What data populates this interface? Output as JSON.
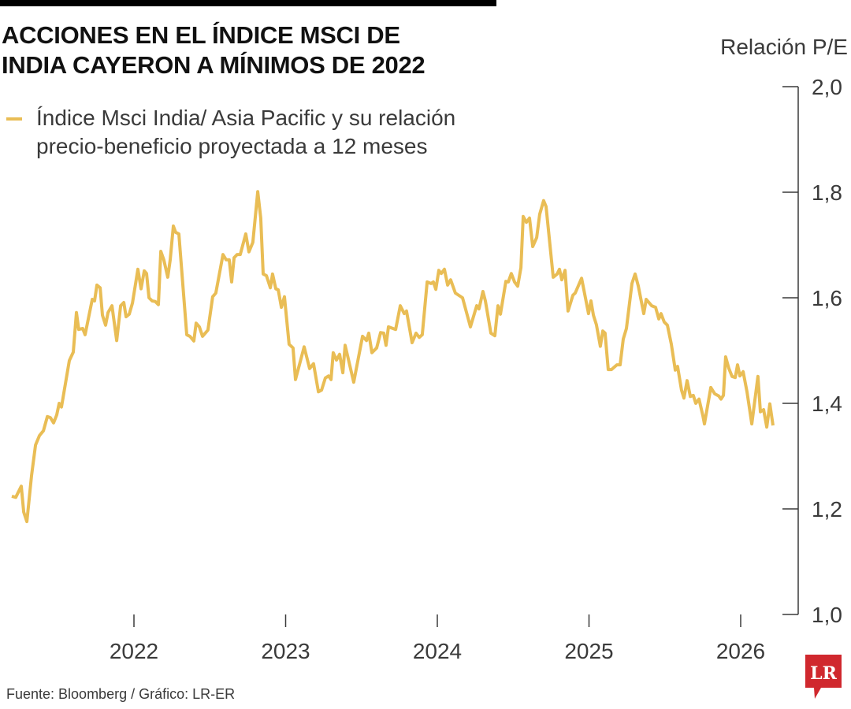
{
  "title_lines": [
    "ACCIONES EN EL ÍNDICE MSCI DE",
    "INDIA CAYERON A MÍNIMOS DE 2022"
  ],
  "legend": {
    "lines": [
      "Índice Msci India/ Asia Pacific y su relación",
      "precio-beneficio proyectada a 12 meses"
    ]
  },
  "source": "Fuente: Bloomberg / Gráfico: LR-ER",
  "logo_text": "LR",
  "colors": {
    "line": "#e9bd55",
    "axis": "#3a3a3a",
    "logo": "#d0282e"
  },
  "chart_data": {
    "type": "line",
    "title": "ACCIONES EN EL ÍNDICE MSCI DE INDIA CAYERON A MÍNIMOS DE 2022",
    "xlabel": "",
    "ylabel": "Relación P/E",
    "xlim": [
      2021.12,
      2026.49
    ],
    "ylim": [
      1.0,
      2.0
    ],
    "x_ticks": [
      2022,
      2023,
      2024,
      2025,
      2026
    ],
    "x_tick_labels": [
      "2022",
      "2023",
      "2024",
      "2025",
      "2026"
    ],
    "y_ticks": [
      1.0,
      1.2,
      1.4,
      1.6,
      1.8,
      2.0
    ],
    "y_tick_labels": [
      "1,0",
      "1,2",
      "1,4",
      "1,6",
      "1,8",
      "2,0"
    ],
    "grid": false,
    "legend_position": "top-left",
    "series": [
      {
        "name": "Índice Msci India/ Asia Pacific y su relación precio-beneficio proyectada a 12 meses",
        "x": [
          2021.195,
          2021.221,
          2021.257,
          2021.273,
          2021.294,
          2021.325,
          2021.351,
          2021.377,
          2021.403,
          2021.429,
          2021.449,
          2021.47,
          2021.491,
          2021.507,
          2021.522,
          2021.574,
          2021.6,
          2021.621,
          2021.636,
          2021.662,
          2021.678,
          2021.725,
          2021.74,
          2021.756,
          2021.777,
          2021.792,
          2021.813,
          2021.829,
          2021.855,
          2021.886,
          2021.912,
          2021.933,
          2021.948,
          2021.969,
          2021.99,
          2022.026,
          2022.047,
          2022.068,
          2022.083,
          2022.099,
          2022.12,
          2022.14,
          2022.161,
          2022.177,
          2022.197,
          2022.223,
          2022.239,
          2022.26,
          2022.275,
          2022.296,
          2022.348,
          2022.369,
          2022.395,
          2022.41,
          2022.431,
          2022.452,
          2022.488,
          2022.519,
          2022.54,
          2022.587,
          2022.608,
          2022.628,
          2022.644,
          2022.66,
          2022.68,
          2022.701,
          2022.737,
          2022.758,
          2022.784,
          2022.816,
          2022.836,
          2022.852,
          2022.873,
          2022.899,
          2022.914,
          2022.935,
          2022.951,
          2022.972,
          2022.992,
          2023.023,
          2023.049,
          2023.065,
          2023.122,
          2023.158,
          2023.184,
          2023.216,
          2023.237,
          2023.262,
          2023.283,
          2023.299,
          2023.314,
          2023.335,
          2023.356,
          2023.377,
          2023.392,
          2023.449,
          2023.507,
          2023.533,
          2023.548,
          2023.569,
          2023.6,
          2023.626,
          2023.647,
          2023.662,
          2023.678,
          2023.725,
          2023.756,
          2023.782,
          2023.797,
          2023.834,
          2023.86,
          2023.881,
          2023.901,
          2023.933,
          2023.958,
          2023.974,
          2023.99,
          2024.01,
          2024.026,
          2024.047,
          2024.068,
          2024.088,
          2024.119,
          2024.166,
          2024.218,
          2024.26,
          2024.275,
          2024.301,
          2024.317,
          2024.353,
          2024.379,
          2024.4,
          2024.416,
          2024.452,
          2024.468,
          2024.488,
          2024.509,
          2024.53,
          2024.551,
          2024.566,
          2024.587,
          2024.608,
          2024.629,
          2024.655,
          2024.675,
          2024.701,
          2024.717,
          2024.764,
          2024.79,
          2024.805,
          2024.821,
          2024.842,
          2024.862,
          2024.894,
          2024.909,
          2024.951,
          2024.997,
          2025.013,
          2025.029,
          2025.049,
          2025.075,
          2025.091,
          2025.106,
          2025.127,
          2025.148,
          2025.184,
          2025.205,
          2025.226,
          2025.247,
          2025.283,
          2025.304,
          2025.325,
          2025.361,
          2025.377,
          2025.413,
          2025.439,
          2025.46,
          2025.475,
          2025.496,
          2025.517,
          2025.543,
          2025.569,
          2025.584,
          2025.61,
          2025.626,
          2025.647,
          2025.668,
          2025.688,
          2025.704,
          2025.725,
          2025.751,
          2025.761,
          2025.803,
          2025.829,
          2025.855,
          2025.87,
          2025.886,
          2025.901,
          2025.922,
          2025.943,
          2025.964,
          2025.979,
          2025.995,
          2026.016,
          2026.042,
          2026.073,
          2026.114,
          2026.13,
          2026.151,
          2026.172,
          2026.192,
          2026.213
        ],
        "y": [
          1.224,
          1.222,
          1.243,
          1.194,
          1.176,
          1.264,
          1.321,
          1.339,
          1.348,
          1.375,
          1.373,
          1.363,
          1.378,
          1.4,
          1.393,
          1.481,
          1.497,
          1.572,
          1.54,
          1.542,
          1.53,
          1.597,
          1.594,
          1.624,
          1.619,
          1.567,
          1.548,
          1.572,
          1.585,
          1.519,
          1.585,
          1.591,
          1.564,
          1.569,
          1.59,
          1.654,
          1.617,
          1.651,
          1.646,
          1.6,
          1.594,
          1.593,
          1.587,
          1.688,
          1.672,
          1.639,
          1.672,
          1.736,
          1.724,
          1.721,
          1.53,
          1.527,
          1.518,
          1.552,
          1.545,
          1.527,
          1.539,
          1.602,
          1.609,
          1.682,
          1.672,
          1.672,
          1.63,
          1.676,
          1.682,
          1.682,
          1.721,
          1.687,
          1.705,
          1.801,
          1.751,
          1.645,
          1.642,
          1.619,
          1.645,
          1.617,
          1.615,
          1.582,
          1.602,
          1.512,
          1.505,
          1.445,
          1.507,
          1.466,
          1.475,
          1.422,
          1.425,
          1.448,
          1.452,
          1.445,
          1.496,
          1.482,
          1.493,
          1.458,
          1.51,
          1.44,
          1.527,
          1.519,
          1.533,
          1.496,
          1.505,
          1.534,
          1.533,
          1.51,
          1.545,
          1.54,
          1.585,
          1.57,
          1.575,
          1.515,
          1.533,
          1.525,
          1.53,
          1.63,
          1.627,
          1.63,
          1.616,
          1.652,
          1.646,
          1.654,
          1.624,
          1.634,
          1.609,
          1.6,
          1.545,
          1.585,
          1.579,
          1.612,
          1.594,
          1.533,
          1.528,
          1.585,
          1.569,
          1.631,
          1.63,
          1.646,
          1.63,
          1.622,
          1.657,
          1.754,
          1.743,
          1.751,
          1.697,
          1.714,
          1.758,
          1.784,
          1.773,
          1.639,
          1.645,
          1.654,
          1.634,
          1.652,
          1.575,
          1.605,
          1.609,
          1.637,
          1.57,
          1.594,
          1.567,
          1.549,
          1.508,
          1.537,
          1.533,
          1.464,
          1.464,
          1.473,
          1.473,
          1.522,
          1.542,
          1.627,
          1.645,
          1.622,
          1.57,
          1.597,
          1.585,
          1.582,
          1.56,
          1.57,
          1.554,
          1.548,
          1.512,
          1.463,
          1.47,
          1.425,
          1.41,
          1.443,
          1.413,
          1.415,
          1.4,
          1.408,
          1.376,
          1.361,
          1.43,
          1.418,
          1.414,
          1.408,
          1.415,
          1.488,
          1.466,
          1.451,
          1.449,
          1.473,
          1.452,
          1.46,
          1.421,
          1.361,
          1.451,
          1.384,
          1.388,
          1.355,
          1.399,
          1.358
        ]
      }
    ]
  }
}
